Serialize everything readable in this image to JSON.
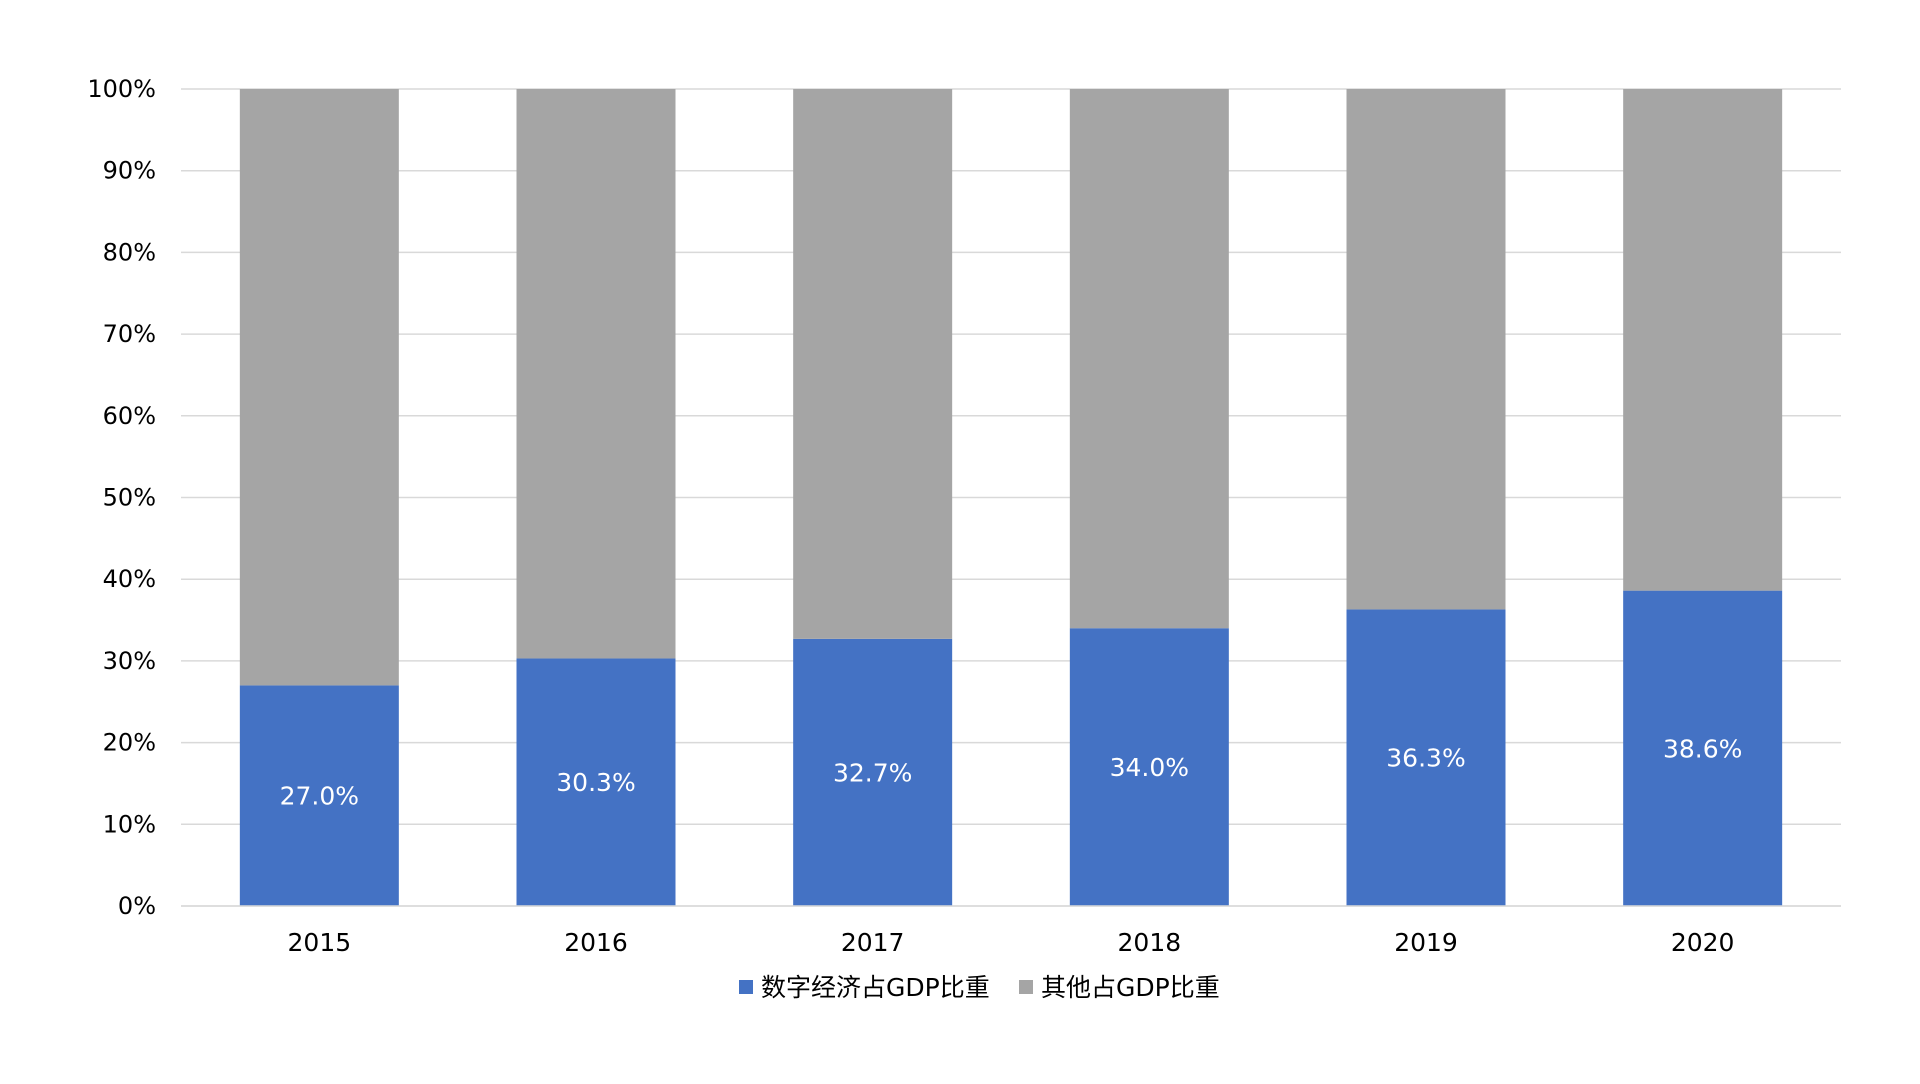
{
  "chart_data": {
    "type": "bar",
    "stacked": true,
    "categories": [
      "2015",
      "2016",
      "2017",
      "2018",
      "2019",
      "2020"
    ],
    "series": [
      {
        "name": "数字经济占GDP比重",
        "values": [
          27.0,
          30.3,
          32.7,
          34.0,
          36.3,
          38.6
        ],
        "data_labels": [
          "27.0%",
          "30.3%",
          "32.7%",
          "34.0%",
          "36.3%",
          "38.6%"
        ],
        "color": "#4472C4"
      },
      {
        "name": "其他占GDP比重",
        "values": [
          73.0,
          69.7,
          67.3,
          66.0,
          63.7,
          61.4
        ],
        "color": "#A5A5A5"
      }
    ],
    "y_ticks": [
      "0%",
      "10%",
      "20%",
      "30%",
      "40%",
      "50%",
      "60%",
      "70%",
      "80%",
      "90%",
      "100%"
    ],
    "ylim": [
      0,
      100
    ],
    "grid": true,
    "gridline_color": "#D9D9D9",
    "legend_position": "bottom-center"
  }
}
